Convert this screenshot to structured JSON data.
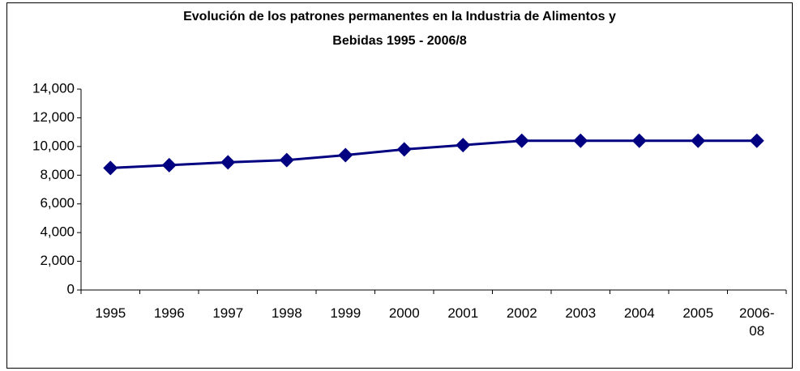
{
  "chart_data": {
    "type": "line",
    "title": [
      "Evolución de los patrones permanentes en la Industria de Alimentos y",
      "Bebidas 1995 - 2006/8"
    ],
    "categories": [
      "1995",
      "1996",
      "1997",
      "1998",
      "1999",
      "2000",
      "2001",
      "2002",
      "2003",
      "2004",
      "2005",
      "2006-08"
    ],
    "series": [
      {
        "color": "#000080",
        "values": [
          8500,
          8700,
          8900,
          9050,
          9400,
          9800,
          10100,
          10400,
          10400,
          10400,
          10400,
          10400
        ]
      }
    ],
    "ylim": [
      0,
      14000
    ],
    "yticks": [
      0,
      {
        "value": 2000,
        "label": "2,000"
      },
      {
        "value": 4000,
        "label": "4,000"
      },
      {
        "value": 6000,
        "label": "6,000"
      },
      {
        "value": 8000,
        "label": "8,000"
      },
      {
        "value": 10000,
        "label": "10,000"
      },
      {
        "value": 12000,
        "label": "12,000"
      },
      {
        "value": 14000,
        "label": "14,000"
      }
    ],
    "grid": false
  }
}
